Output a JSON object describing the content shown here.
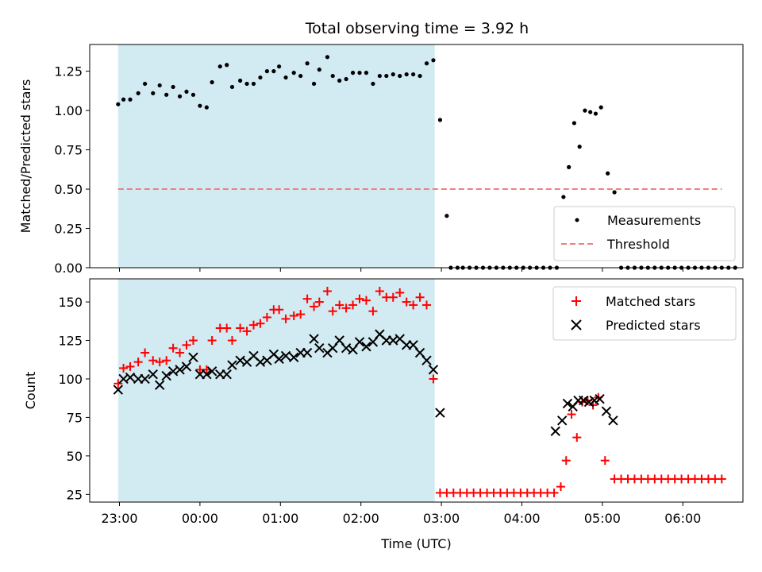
{
  "chart_data": [
    {
      "type": "scatter",
      "title": "Total observing time = 3.92 h",
      "xlabel": "",
      "ylabel": "Matched/Predicted stars",
      "ylim": [
        0,
        1.42
      ],
      "yticks": [
        "0.00",
        "0.25",
        "0.50",
        "0.75",
        "1.00",
        "1.25"
      ],
      "shade": {
        "x0": "22:59",
        "x1": "02:55",
        "color": "#add8e6"
      },
      "legend": {
        "position": "lower-right",
        "entries": [
          "Measurements",
          "Threshold"
        ]
      },
      "series": [
        {
          "name": "Measurements",
          "marker": "dot",
          "color": "#000000",
          "points": [
            [
              "22:59",
              1.04
            ],
            [
              "23:03",
              1.07
            ],
            [
              "23:08",
              1.07
            ],
            [
              "23:14",
              1.11
            ],
            [
              "23:19",
              1.17
            ],
            [
              "23:25",
              1.11
            ],
            [
              "23:30",
              1.16
            ],
            [
              "23:35",
              1.1
            ],
            [
              "23:40",
              1.15
            ],
            [
              "23:45",
              1.09
            ],
            [
              "23:50",
              1.12
            ],
            [
              "23:55",
              1.1
            ],
            [
              "00:00",
              1.03
            ],
            [
              "00:05",
              1.02
            ],
            [
              "00:09",
              1.18
            ],
            [
              "00:15",
              1.28
            ],
            [
              "00:20",
              1.29
            ],
            [
              "00:24",
              1.15
            ],
            [
              "00:30",
              1.19
            ],
            [
              "00:35",
              1.17
            ],
            [
              "00:40",
              1.17
            ],
            [
              "00:45",
              1.21
            ],
            [
              "00:50",
              1.25
            ],
            [
              "00:55",
              1.25
            ],
            [
              "00:59",
              1.28
            ],
            [
              "01:04",
              1.21
            ],
            [
              "01:10",
              1.24
            ],
            [
              "01:15",
              1.22
            ],
            [
              "01:20",
              1.3
            ],
            [
              "01:25",
              1.17
            ],
            [
              "01:29",
              1.26
            ],
            [
              "01:35",
              1.34
            ],
            [
              "01:39",
              1.22
            ],
            [
              "01:44",
              1.19
            ],
            [
              "01:49",
              1.2
            ],
            [
              "01:54",
              1.24
            ],
            [
              "01:59",
              1.24
            ],
            [
              "02:04",
              1.24
            ],
            [
              "02:09",
              1.17
            ],
            [
              "02:14",
              1.22
            ],
            [
              "02:19",
              1.22
            ],
            [
              "02:24",
              1.23
            ],
            [
              "02:29",
              1.22
            ],
            [
              "02:34",
              1.23
            ],
            [
              "02:39",
              1.23
            ],
            [
              "02:44",
              1.22
            ],
            [
              "02:49",
              1.3
            ],
            [
              "02:54",
              1.32
            ],
            [
              "02:59",
              0.94
            ],
            [
              "03:04",
              0.33
            ],
            [
              "03:07",
              0
            ],
            [
              "03:12",
              0
            ],
            [
              "03:16",
              0
            ],
            [
              "03:21",
              0
            ],
            [
              "03:26",
              0
            ],
            [
              "03:31",
              0
            ],
            [
              "03:36",
              0
            ],
            [
              "03:41",
              0
            ],
            [
              "03:46",
              0
            ],
            [
              "03:51",
              0
            ],
            [
              "03:56",
              0
            ],
            [
              "04:01",
              0
            ],
            [
              "04:06",
              0
            ],
            [
              "04:11",
              0
            ],
            [
              "04:16",
              0
            ],
            [
              "04:21",
              0
            ],
            [
              "04:26",
              0
            ],
            [
              "04:31",
              0.45
            ],
            [
              "04:35",
              0.64
            ],
            [
              "04:39",
              0.92
            ],
            [
              "04:43",
              0.77
            ],
            [
              "04:47",
              1.0
            ],
            [
              "04:51",
              0.99
            ],
            [
              "04:55",
              0.98
            ],
            [
              "04:59",
              1.02
            ],
            [
              "05:04",
              0.6
            ],
            [
              "05:09",
              0.48
            ],
            [
              "05:14",
              0
            ],
            [
              "05:19",
              0
            ],
            [
              "05:24",
              0
            ],
            [
              "05:29",
              0
            ],
            [
              "05:34",
              0
            ],
            [
              "05:39",
              0
            ],
            [
              "05:44",
              0
            ],
            [
              "05:49",
              0
            ],
            [
              "05:54",
              0
            ],
            [
              "05:59",
              0
            ],
            [
              "06:04",
              0
            ],
            [
              "06:09",
              0
            ],
            [
              "06:14",
              0
            ],
            [
              "06:19",
              0
            ],
            [
              "06:24",
              0
            ],
            [
              "06:29",
              0
            ],
            [
              "06:34",
              0
            ],
            [
              "06:39",
              0
            ]
          ]
        },
        {
          "name": "Threshold",
          "marker": "dashed-line",
          "color": "#f08080",
          "points": [
            [
              "22:59",
              0.5
            ],
            [
              "06:29",
              0.5
            ]
          ]
        }
      ]
    },
    {
      "type": "scatter",
      "xlabel": "Time (UTC)",
      "ylabel": "Count",
      "ylim": [
        20,
        165
      ],
      "yticks": [
        "25",
        "50",
        "75",
        "100",
        "125",
        "150"
      ],
      "xticks": [
        "23:00",
        "00:00",
        "01:00",
        "02:00",
        "03:00",
        "04:00",
        "05:00",
        "06:00"
      ],
      "shade": {
        "x0": "22:59",
        "x1": "02:55",
        "color": "#add8e6"
      },
      "legend": {
        "position": "upper-right",
        "entries": [
          "Matched stars",
          "Predicted stars"
        ]
      },
      "series": [
        {
          "name": "Matched stars",
          "marker": "plus",
          "color": "#ff0000",
          "points": [
            [
              "22:59",
              97
            ],
            [
              "23:03",
              107
            ],
            [
              "23:08",
              108
            ],
            [
              "23:14",
              111
            ],
            [
              "23:19",
              117
            ],
            [
              "23:25",
              112
            ],
            [
              "23:30",
              111
            ],
            [
              "23:35",
              112
            ],
            [
              "23:40",
              120
            ],
            [
              "23:45",
              117
            ],
            [
              "23:50",
              122
            ],
            [
              "23:55",
              125
            ],
            [
              "00:00",
              106
            ],
            [
              "00:05",
              106
            ],
            [
              "00:09",
              125
            ],
            [
              "00:15",
              133
            ],
            [
              "00:20",
              133
            ],
            [
              "00:24",
              125
            ],
            [
              "00:30",
              133
            ],
            [
              "00:35",
              131
            ],
            [
              "00:40",
              135
            ],
            [
              "00:45",
              136
            ],
            [
              "00:50",
              140
            ],
            [
              "00:55",
              145
            ],
            [
              "00:59",
              145
            ],
            [
              "01:04",
              139
            ],
            [
              "01:10",
              141
            ],
            [
              "01:15",
              142
            ],
            [
              "01:20",
              152
            ],
            [
              "01:25",
              147
            ],
            [
              "01:29",
              150
            ],
            [
              "01:35",
              157
            ],
            [
              "01:39",
              144
            ],
            [
              "01:44",
              148
            ],
            [
              "01:49",
              146
            ],
            [
              "01:54",
              148
            ],
            [
              "01:59",
              152
            ],
            [
              "02:04",
              151
            ],
            [
              "02:09",
              144
            ],
            [
              "02:14",
              157
            ],
            [
              "02:19",
              153
            ],
            [
              "02:24",
              153
            ],
            [
              "02:29",
              156
            ],
            [
              "02:34",
              150
            ],
            [
              "02:39",
              148
            ],
            [
              "02:44",
              153
            ],
            [
              "02:49",
              148
            ],
            [
              "02:54",
              100
            ],
            [
              "02:59",
              26
            ],
            [
              "03:04",
              26
            ],
            [
              "03:09",
              26
            ],
            [
              "03:14",
              26
            ],
            [
              "03:19",
              26
            ],
            [
              "03:24",
              26
            ],
            [
              "03:29",
              26
            ],
            [
              "03:34",
              26
            ],
            [
              "03:39",
              26
            ],
            [
              "03:44",
              26
            ],
            [
              "03:49",
              26
            ],
            [
              "03:54",
              26
            ],
            [
              "03:59",
              26
            ],
            [
              "04:04",
              26
            ],
            [
              "04:09",
              26
            ],
            [
              "04:14",
              26
            ],
            [
              "04:19",
              26
            ],
            [
              "04:24",
              26
            ],
            [
              "04:29",
              30
            ],
            [
              "04:33",
              47
            ],
            [
              "04:37",
              77
            ],
            [
              "04:41",
              62
            ],
            [
              "04:45",
              85
            ],
            [
              "04:49",
              86
            ],
            [
              "04:53",
              83
            ],
            [
              "04:57",
              88
            ],
            [
              "05:02",
              47
            ],
            [
              "05:09",
              35
            ],
            [
              "05:14",
              35
            ],
            [
              "05:19",
              35
            ],
            [
              "05:24",
              35
            ],
            [
              "05:29",
              35
            ],
            [
              "05:34",
              35
            ],
            [
              "05:39",
              35
            ],
            [
              "05:44",
              35
            ],
            [
              "05:49",
              35
            ],
            [
              "05:54",
              35
            ],
            [
              "05:59",
              35
            ],
            [
              "06:04",
              35
            ],
            [
              "06:09",
              35
            ],
            [
              "06:14",
              35
            ],
            [
              "06:19",
              35
            ],
            [
              "06:24",
              35
            ],
            [
              "06:29",
              35
            ]
          ]
        },
        {
          "name": "Predicted stars",
          "marker": "x",
          "color": "#000000",
          "points": [
            [
              "22:59",
              93
            ],
            [
              "23:03",
              100
            ],
            [
              "23:08",
              101
            ],
            [
              "23:14",
              100
            ],
            [
              "23:19",
              100
            ],
            [
              "23:25",
              103
            ],
            [
              "23:30",
              96
            ],
            [
              "23:35",
              102
            ],
            [
              "23:40",
              105
            ],
            [
              "23:45",
              106
            ],
            [
              "23:50",
              108
            ],
            [
              "23:55",
              114
            ],
            [
              "00:00",
              103
            ],
            [
              "00:05",
              103
            ],
            [
              "00:09",
              105
            ],
            [
              "00:15",
              103
            ],
            [
              "00:20",
              103
            ],
            [
              "00:24",
              109
            ],
            [
              "00:30",
              112
            ],
            [
              "00:35",
              111
            ],
            [
              "00:40",
              115
            ],
            [
              "00:45",
              111
            ],
            [
              "00:50",
              112
            ],
            [
              "00:55",
              116
            ],
            [
              "00:59",
              113
            ],
            [
              "01:04",
              115
            ],
            [
              "01:10",
              114
            ],
            [
              "01:15",
              117
            ],
            [
              "01:20",
              117
            ],
            [
              "01:25",
              126
            ],
            [
              "01:29",
              120
            ],
            [
              "01:35",
              117
            ],
            [
              "01:39",
              120
            ],
            [
              "01:44",
              125
            ],
            [
              "01:49",
              120
            ],
            [
              "01:54",
              119
            ],
            [
              "01:59",
              124
            ],
            [
              "02:04",
              121
            ],
            [
              "02:09",
              124
            ],
            [
              "02:14",
              129
            ],
            [
              "02:19",
              125
            ],
            [
              "02:24",
              125
            ],
            [
              "02:29",
              126
            ],
            [
              "02:34",
              122
            ],
            [
              "02:39",
              122
            ],
            [
              "02:44",
              117
            ],
            [
              "02:49",
              112
            ],
            [
              "02:54",
              106
            ],
            [
              "02:59",
              78
            ],
            [
              "04:25",
              66
            ],
            [
              "04:30",
              73
            ],
            [
              "04:34",
              84
            ],
            [
              "04:38",
              82
            ],
            [
              "04:42",
              86
            ],
            [
              "04:46",
              86
            ],
            [
              "04:50",
              85
            ],
            [
              "04:54",
              86
            ],
            [
              "04:58",
              87
            ],
            [
              "05:03",
              79
            ],
            [
              "05:08",
              73
            ]
          ]
        }
      ]
    }
  ]
}
